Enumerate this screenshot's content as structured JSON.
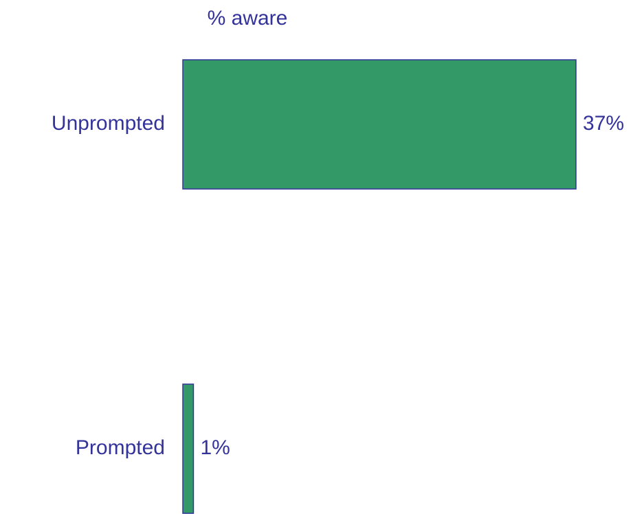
{
  "chart_data": {
    "type": "hbar",
    "title": "% aware",
    "categories": [
      "Unprompted",
      "Prompted"
    ],
    "values": [
      37,
      1
    ],
    "value_labels": [
      "37%",
      "1%"
    ],
    "color": "#339966"
  }
}
